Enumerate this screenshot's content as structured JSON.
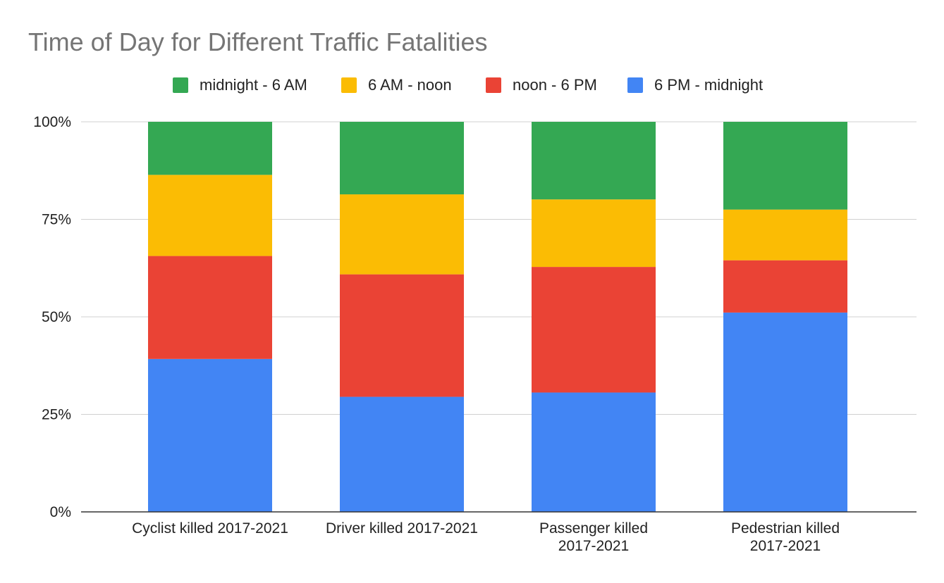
{
  "chart_data": {
    "type": "bar",
    "stacked": true,
    "percent_stacked": true,
    "title": "Time of Day for Different Traffic Fatalities",
    "xlabel": "",
    "ylabel": "",
    "categories": [
      [
        "Cyclist killed 2017-2021"
      ],
      [
        "Driver killed 2017-2021"
      ],
      [
        "Passenger killed",
        "2017-2021"
      ],
      [
        "Pedestrian killed",
        "2017-2021"
      ]
    ],
    "series": [
      {
        "name": "6 PM - midnight",
        "color": "#4285F4",
        "values": [
          0.392,
          0.295,
          0.306,
          0.511
        ]
      },
      {
        "name": "noon - 6 PM",
        "color": "#EA4335",
        "values": [
          0.264,
          0.314,
          0.322,
          0.134
        ]
      },
      {
        "name": "6 AM - noon",
        "color": "#FBBC04",
        "values": [
          0.208,
          0.205,
          0.173,
          0.13
        ]
      },
      {
        "name": "midnight - 6 AM",
        "color": "#34A853",
        "values": [
          0.136,
          0.186,
          0.199,
          0.225
        ]
      }
    ],
    "legend_order": [
      "midnight - 6 AM",
      "6 AM - noon",
      "noon - 6 PM",
      "6 PM - midnight"
    ],
    "legend_position": "top",
    "ylim": [
      0,
      1
    ],
    "yticks": [
      0,
      0.25,
      0.5,
      0.75,
      1
    ],
    "ytick_labels": [
      "0%",
      "25%",
      "50%",
      "75%",
      "100%"
    ],
    "grid": true
  }
}
